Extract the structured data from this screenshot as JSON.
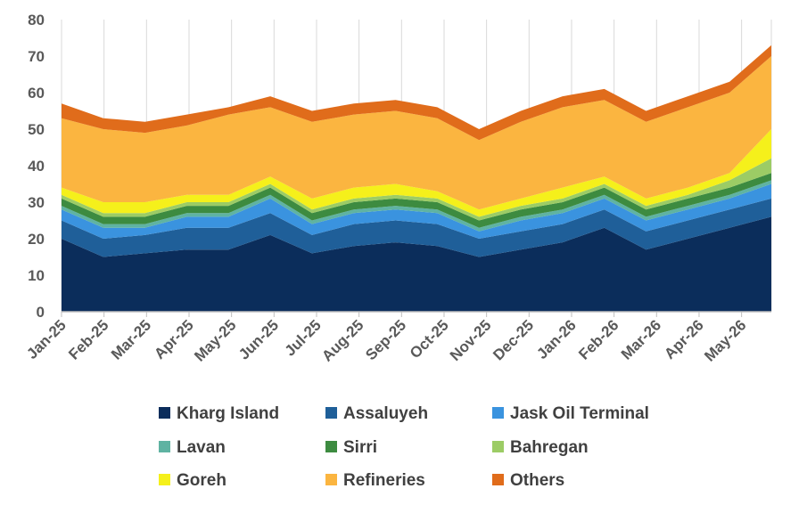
{
  "chart_data": {
    "type": "area",
    "stacked": true,
    "title": "",
    "xlabel": "",
    "ylabel": "",
    "ylim": [
      0,
      80
    ],
    "yticks": [
      0,
      10,
      20,
      30,
      40,
      50,
      60,
      70,
      80
    ],
    "grid": "vertical",
    "legend_position": "bottom",
    "x_tick_labels": [
      "Jan-25",
      "Feb-25",
      "Mar-25",
      "Apr-25",
      "May-25",
      "Jun-25",
      "Jul-25",
      "Aug-25",
      "Sep-25",
      "Oct-25",
      "Nov-25",
      "Dec-25",
      "Jan-26",
      "Feb-26",
      "Mar-26",
      "Apr-26",
      "May-26"
    ],
    "x": [
      "Jan-25",
      "Feb-25",
      "Mar-25",
      "Apr-25",
      "May-25",
      "Jun-25",
      "Jul-25",
      "Aug-25",
      "Sep-25",
      "Oct-25",
      "Nov-25",
      "Dec-25",
      "Jan-26",
      "Feb-26",
      "Mar-26",
      "Apr-26",
      "May-26",
      "May-26 (end)"
    ],
    "series": [
      {
        "name": "Kharg Island",
        "color": "#0b2d5b",
        "values": [
          20,
          15,
          16,
          17,
          17,
          21,
          16,
          18,
          19,
          18,
          15,
          17,
          19,
          23,
          17,
          20,
          23,
          26
        ]
      },
      {
        "name": "Assaluyeh",
        "color": "#1f5f99",
        "values": [
          5,
          5,
          5,
          6,
          6,
          6,
          5,
          6,
          6,
          6,
          5,
          5,
          5,
          5,
          5,
          5,
          5,
          5
        ]
      },
      {
        "name": "Jask Oil Terminal",
        "color": "#3a93df",
        "values": [
          3,
          3,
          2,
          3,
          3,
          4,
          3,
          3,
          3,
          3,
          2,
          3,
          3,
          3,
          3,
          3,
          3,
          4
        ]
      },
      {
        "name": "Lavan",
        "color": "#5fb3a2",
        "values": [
          1,
          1,
          1,
          1,
          1,
          1,
          1,
          1,
          1,
          1,
          1,
          1,
          1,
          1,
          1,
          1,
          1,
          1
        ]
      },
      {
        "name": "Sirri",
        "color": "#3d8b40",
        "values": [
          2,
          2,
          2,
          2,
          2,
          2,
          2,
          2,
          2,
          2,
          2,
          2,
          2,
          2,
          2,
          2,
          2,
          2
        ]
      },
      {
        "name": "Bahregan",
        "color": "#9ccc65",
        "values": [
          1,
          1,
          1,
          1,
          1,
          1,
          1,
          1,
          1,
          1,
          1,
          1,
          1,
          1,
          1,
          1,
          2,
          4
        ]
      },
      {
        "name": "Goreh",
        "color": "#f5f01b",
        "values": [
          2,
          3,
          3,
          2,
          2,
          2,
          3,
          3,
          3,
          2,
          2,
          2,
          3,
          2,
          2,
          2,
          2,
          8
        ]
      },
      {
        "name": "Refineries",
        "color": "#fbb540",
        "values": [
          19,
          20,
          19,
          19,
          22,
          19,
          21,
          20,
          20,
          20,
          19,
          21,
          22,
          21,
          21,
          22,
          22,
          20
        ]
      },
      {
        "name": "Others",
        "color": "#e06c1b",
        "values": [
          4,
          3,
          3,
          3,
          2,
          3,
          3,
          3,
          3,
          3,
          3,
          3,
          3,
          3,
          3,
          3,
          3,
          3
        ]
      }
    ]
  }
}
